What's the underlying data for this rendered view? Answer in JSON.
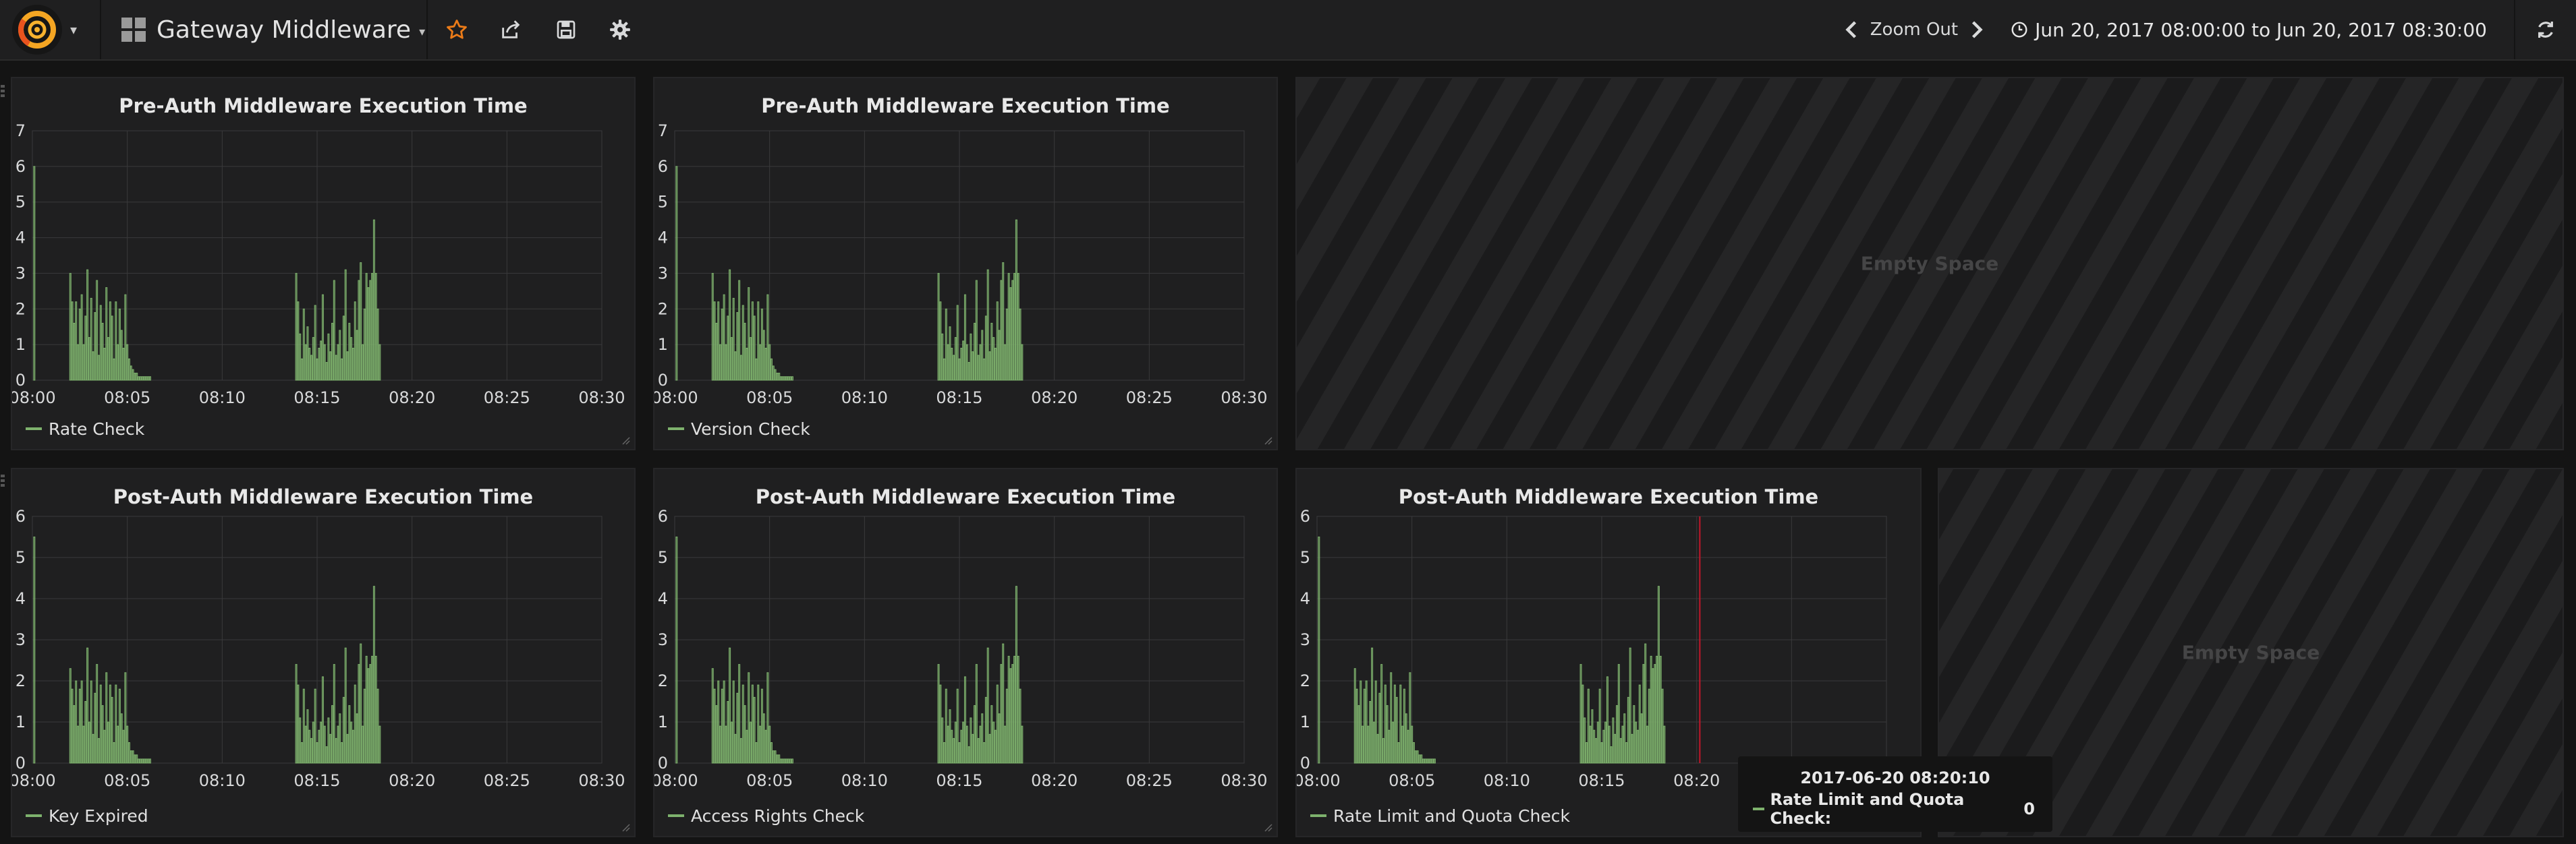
{
  "navbar": {
    "dashboard_title": "Gateway Middleware",
    "zoom_out_label": "Zoom Out",
    "time_range": "Jun 20, 2017 08:00:00 to Jun 20, 2017 08:30:00",
    "icons": [
      "grafana-logo-icon",
      "star-icon",
      "share-icon",
      "save-icon",
      "gear-icon",
      "chevron-left-icon",
      "chevron-right-icon",
      "clock-icon",
      "refresh-icon"
    ],
    "colors": {
      "star": "#eb7b18",
      "background": "#1f1f20"
    }
  },
  "empty_space_label": "Empty Space",
  "chart_data": [
    {
      "type": "bar",
      "title": "Pre-Auth Middleware Execution Time",
      "series": [
        {
          "name": "Rate Check",
          "color": "#7eb26d",
          "data": "spike"
        }
      ],
      "x_ticks": [
        "08:00",
        "08:05",
        "08:10",
        "08:15",
        "08:20",
        "08:25",
        "08:30"
      ],
      "y_ticks": [
        "0",
        "1",
        "2",
        "3",
        "4",
        "5",
        "6",
        "7"
      ],
      "ylim": [
        0,
        7
      ],
      "grid": true
    },
    {
      "type": "bar",
      "title": "Pre-Auth Middleware Execution Time",
      "series": [
        {
          "name": "Version Check",
          "color": "#7eb26d"
        }
      ],
      "x_ticks": [
        "08:00",
        "08:05",
        "08:10",
        "08:15",
        "08:20",
        "08:25",
        "08:30"
      ],
      "y_ticks": [
        "0",
        "1",
        "2",
        "3",
        "4",
        "5",
        "6",
        "7"
      ],
      "ylim": [
        0,
        7
      ],
      "grid": true
    },
    {
      "type": "bar",
      "title": "Post-Auth Middleware Execution Time",
      "series": [
        {
          "name": "Key Expired",
          "color": "#7eb26d"
        }
      ],
      "x_ticks": [
        "08:00",
        "08:05",
        "08:10",
        "08:15",
        "08:20",
        "08:25",
        "08:30"
      ],
      "y_ticks": [
        "0",
        "1",
        "2",
        "3",
        "4",
        "5",
        "6"
      ],
      "ylim": [
        0,
        6
      ],
      "grid": true
    },
    {
      "type": "bar",
      "title": "Post-Auth Middleware Execution Time",
      "series": [
        {
          "name": "Access Rights Check",
          "color": "#7eb26d"
        }
      ],
      "x_ticks": [
        "08:00",
        "08:05",
        "08:10",
        "08:15",
        "08:20",
        "08:25",
        "08:30"
      ],
      "y_ticks": [
        "0",
        "1",
        "2",
        "3",
        "4",
        "5",
        "6"
      ],
      "ylim": [
        0,
        6
      ],
      "grid": true
    },
    {
      "type": "bar",
      "title": "Post-Auth Middleware Execution Time",
      "series": [
        {
          "name": "Rate Limit and Quota Check",
          "color": "#7eb26d"
        }
      ],
      "x_ticks": [
        "08:00",
        "08:05",
        "08:10",
        "08:15",
        "08:20",
        "08:25",
        "08:30"
      ],
      "y_ticks": [
        "0",
        "1",
        "2",
        "3",
        "4",
        "5",
        "6"
      ],
      "ylim": [
        0,
        6
      ],
      "grid": true,
      "hover_x": "08:20:10"
    }
  ],
  "bar_pattern": {
    "minutes": [
      0.1,
      2.0,
      2.1,
      2.2,
      2.3,
      2.4,
      2.5,
      2.6,
      2.7,
      2.8,
      2.9,
      3.0,
      3.1,
      3.2,
      3.3,
      3.4,
      3.5,
      3.6,
      3.7,
      3.8,
      3.9,
      4.0,
      4.1,
      4.2,
      4.3,
      4.4,
      4.5,
      4.6,
      4.7,
      4.8,
      4.9,
      5.0,
      5.1,
      5.2,
      5.3,
      5.4,
      5.5,
      5.6,
      5.7,
      5.8,
      5.9,
      6.0,
      6.1,
      6.2,
      13.9,
      14.0,
      14.1,
      14.2,
      14.3,
      14.4,
      14.5,
      14.6,
      14.7,
      14.8,
      14.9,
      15.0,
      15.1,
      15.2,
      15.3,
      15.4,
      15.5,
      15.6,
      15.7,
      15.8,
      15.9,
      16.0,
      16.1,
      16.2,
      16.3,
      16.4,
      16.5,
      16.6,
      16.7,
      16.8,
      16.9,
      17.0,
      17.1,
      17.2,
      17.3,
      17.4,
      17.5,
      17.6,
      17.7,
      17.8,
      17.9,
      18.0,
      18.1,
      18.2,
      18.3
    ],
    "pre_auth_values": [
      6.0,
      3.0,
      2.2,
      1.6,
      2.2,
      1.0,
      2.0,
      2.4,
      1.0,
      1.8,
      3.1,
      1.2,
      2.3,
      0.8,
      1.9,
      2.8,
      0.7,
      2.1,
      1.6,
      0.9,
      2.6,
      1.2,
      2.2,
      1.8,
      0.6,
      2.2,
      1.0,
      2.0,
      1.4,
      0.9,
      2.4,
      1.0,
      0.6,
      0.4,
      0.3,
      0.2,
      0.2,
      0.1,
      0.1,
      0.1,
      0.1,
      0.1,
      0.1,
      0.1,
      3.0,
      2.2,
      1.3,
      0.6,
      2.0,
      1.0,
      1.5,
      0.9,
      0.7,
      1.2,
      2.1,
      0.6,
      0.9,
      1.1,
      2.4,
      1.0,
      0.5,
      1.3,
      0.8,
      1.6,
      2.8,
      0.7,
      1.0,
      1.4,
      0.6,
      1.8,
      3.1,
      0.8,
      1.6,
      1.2,
      0.9,
      2.2,
      1.4,
      2.8,
      3.3,
      1.0,
      2.0,
      3.0,
      2.6,
      2.8,
      3.0,
      4.5,
      3.0,
      2.0,
      1.0
    ],
    "post_auth_values": [
      5.5,
      2.3,
      1.8,
      1.4,
      2.0,
      0.9,
      1.8,
      2.0,
      0.9,
      1.5,
      2.8,
      1.0,
      2.0,
      0.7,
      1.7,
      2.4,
      0.6,
      1.9,
      1.4,
      0.8,
      2.2,
      1.0,
      1.9,
      1.6,
      0.5,
      1.9,
      0.9,
      1.8,
      1.2,
      0.8,
      2.2,
      0.9,
      0.5,
      0.3,
      0.3,
      0.2,
      0.2,
      0.1,
      0.1,
      0.1,
      0.1,
      0.1,
      0.1,
      0.1,
      2.4,
      1.9,
      1.1,
      0.5,
      1.8,
      0.9,
      1.3,
      0.8,
      0.6,
      1.0,
      1.8,
      0.5,
      0.8,
      1.0,
      2.1,
      0.9,
      0.4,
      1.1,
      0.7,
      1.4,
      2.4,
      0.6,
      0.9,
      1.2,
      0.5,
      1.6,
      2.8,
      0.7,
      1.4,
      1.0,
      0.8,
      1.9,
      1.2,
      2.4,
      2.9,
      0.9,
      1.8,
      2.6,
      2.3,
      2.4,
      2.6,
      4.3,
      2.6,
      1.8,
      0.9
    ]
  },
  "tooltip": {
    "time": "2017-06-20 08:20:10",
    "series_label": "Rate Limit and Quota Check:",
    "value": "0"
  }
}
